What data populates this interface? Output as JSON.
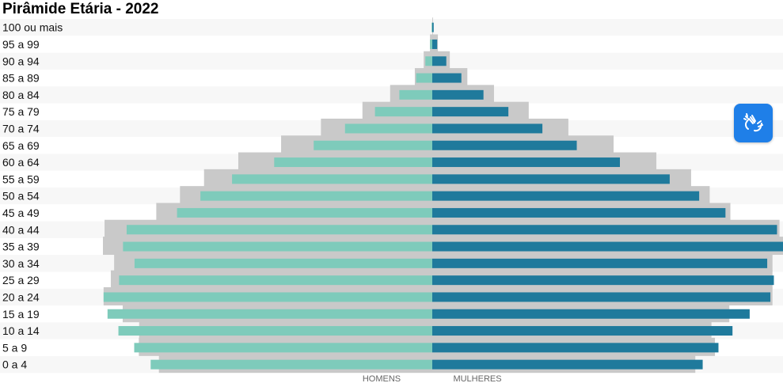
{
  "title": "Pirâmide Etária - 2022",
  "accessibility_button": {
    "icon": "sign-language-hands-icon"
  },
  "colors": {
    "male_current": "#7ecbbb",
    "female_current": "#1f7a9c",
    "comparison": "#c9c9c9",
    "row_band": "#f7f7f7"
  },
  "chart_data": {
    "type": "bar",
    "orientation": "horizontal-population-pyramid",
    "title": "Pirâmide Etária - 2022",
    "categories": [
      "100 ou mais",
      "95 a 99",
      "90 a 94",
      "85 a 89",
      "80 a 84",
      "75 a 79",
      "70 a 74",
      "65 a 69",
      "60 a 64",
      "55 a 59",
      "50 a 54",
      "45 a 49",
      "40 a 44",
      "35 a 39",
      "30 a 34",
      "25 a 29",
      "20 a 24",
      "15 a 19",
      "10 a 14",
      "5 a 9",
      "0 a 4"
    ],
    "x_labels": {
      "left": "HOMENS",
      "right": "MULHERES"
    },
    "scale_max": 1.0,
    "series": [
      {
        "side": "left",
        "role": "comparison",
        "values": [
          0.0,
          0.007,
          0.026,
          0.053,
          0.128,
          0.212,
          0.338,
          0.459,
          0.589,
          0.693,
          0.766,
          0.838,
          0.995,
          1.0,
          0.966,
          0.976,
          0.998,
          0.94,
          0.89,
          0.891,
          0.83
        ]
      },
      {
        "side": "left",
        "role": "current",
        "values": [
          0.002,
          0.007,
          0.021,
          0.049,
          0.1,
          0.174,
          0.265,
          0.36,
          0.48,
          0.608,
          0.704,
          0.775,
          0.928,
          0.939,
          0.904,
          0.951,
          0.998,
          0.986,
          0.953,
          0.905,
          0.855
        ]
      },
      {
        "side": "right",
        "role": "comparison",
        "values": [
          0.002,
          0.016,
          0.05,
          0.1,
          0.176,
          0.275,
          0.388,
          0.517,
          0.639,
          0.738,
          0.791,
          0.85,
          0.99,
          1.0,
          0.97,
          0.97,
          0.97,
          0.847,
          0.796,
          0.806,
          0.75
        ]
      },
      {
        "side": "right",
        "role": "current",
        "values": [
          0.004,
          0.014,
          0.04,
          0.083,
          0.146,
          0.217,
          0.314,
          0.412,
          0.535,
          0.677,
          0.761,
          0.836,
          0.983,
          1.0,
          0.955,
          0.974,
          0.964,
          0.905,
          0.856,
          0.816,
          0.771
        ]
      }
    ]
  }
}
